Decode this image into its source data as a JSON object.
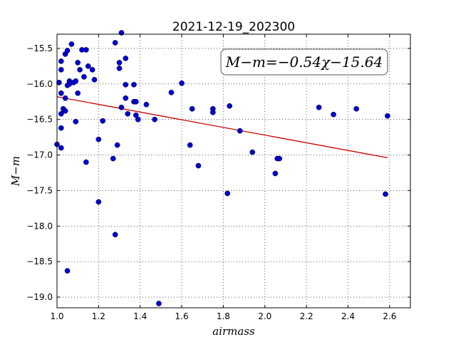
{
  "chart_data": {
    "type": "scatter",
    "title": "2021-12-19_202300",
    "xlabel": "airmass",
    "ylabel": "M−m",
    "xlim": [
      1.0,
      2.7
    ],
    "ylim": [
      -19.15,
      -15.3
    ],
    "y_inverted": true,
    "grid": true,
    "x_ticks": [
      "1.0",
      "1.2",
      "1.4",
      "1.6",
      "1.8",
      "2.0",
      "2.2",
      "2.4",
      "2.6"
    ],
    "y_ticks": [
      "−15.5",
      "−16.0",
      "−16.5",
      "−17.0",
      "−17.5",
      "−18.0",
      "−18.5",
      "−19.0"
    ],
    "annotation": "M−m=−0.54χ−15.64",
    "point_color": "#0000cc",
    "fit_color": "#cc0000",
    "fit_line": {
      "slope": -0.54,
      "intercept": -15.64,
      "x_range": [
        1.0,
        2.59
      ]
    },
    "points": [
      [
        1.0,
        -16.85
      ],
      [
        1.01,
        -15.98
      ],
      [
        1.02,
        -16.9
      ],
      [
        1.02,
        -16.62
      ],
      [
        1.02,
        -16.42
      ],
      [
        1.02,
        -16.13
      ],
      [
        1.02,
        -15.8
      ],
      [
        1.02,
        -15.68
      ],
      [
        1.03,
        -16.35
      ],
      [
        1.04,
        -15.58
      ],
      [
        1.04,
        -16.2
      ],
      [
        1.04,
        -16.38
      ],
      [
        1.05,
        -16.02
      ],
      [
        1.05,
        -18.63
      ],
      [
        1.05,
        -15.53
      ],
      [
        1.06,
        -15.96
      ],
      [
        1.06,
        -16.0
      ],
      [
        1.07,
        -15.44
      ],
      [
        1.08,
        -15.98
      ],
      [
        1.09,
        -15.96
      ],
      [
        1.09,
        -16.53
      ],
      [
        1.1,
        -15.7
      ],
      [
        1.1,
        -16.13
      ],
      [
        1.11,
        -15.8
      ],
      [
        1.12,
        -15.52
      ],
      [
        1.13,
        -15.9
      ],
      [
        1.14,
        -15.52
      ],
      [
        1.14,
        -17.1
      ],
      [
        1.15,
        -15.75
      ],
      [
        1.17,
        -15.8
      ],
      [
        1.18,
        -15.94
      ],
      [
        1.2,
        -16.78
      ],
      [
        1.2,
        -17.66
      ],
      [
        1.22,
        -16.52
      ],
      [
        1.27,
        -17.05
      ],
      [
        1.28,
        -15.42
      ],
      [
        1.28,
        -18.12
      ],
      [
        1.29,
        -16.86
      ],
      [
        1.3,
        -15.78
      ],
      [
        1.3,
        -15.7
      ],
      [
        1.31,
        -16.33
      ],
      [
        1.31,
        -15.28
      ],
      [
        1.33,
        -15.64
      ],
      [
        1.33,
        -16.01
      ],
      [
        1.33,
        -16.2
      ],
      [
        1.34,
        -16.42
      ],
      [
        1.37,
        -16.01
      ],
      [
        1.37,
        -16.25
      ],
      [
        1.38,
        -16.44
      ],
      [
        1.38,
        -16.25
      ],
      [
        1.39,
        -16.5
      ],
      [
        1.43,
        -16.29
      ],
      [
        1.47,
        -16.5
      ],
      [
        1.49,
        -19.09
      ],
      [
        1.55,
        -16.12
      ],
      [
        1.6,
        -15.99
      ],
      [
        1.64,
        -16.86
      ],
      [
        1.65,
        -16.35
      ],
      [
        1.68,
        -17.15
      ],
      [
        1.75,
        -16.35
      ],
      [
        1.75,
        -16.4
      ],
      [
        1.82,
        -17.54
      ],
      [
        1.83,
        -16.31
      ],
      [
        1.88,
        -16.66
      ],
      [
        1.94,
        -16.96
      ],
      [
        2.05,
        -17.26
      ],
      [
        2.06,
        -17.05
      ],
      [
        2.07,
        -17.05
      ],
      [
        2.26,
        -16.33
      ],
      [
        2.33,
        -16.43
      ],
      [
        2.44,
        -16.35
      ],
      [
        2.58,
        -17.55
      ],
      [
        2.59,
        -16.45
      ]
    ]
  }
}
